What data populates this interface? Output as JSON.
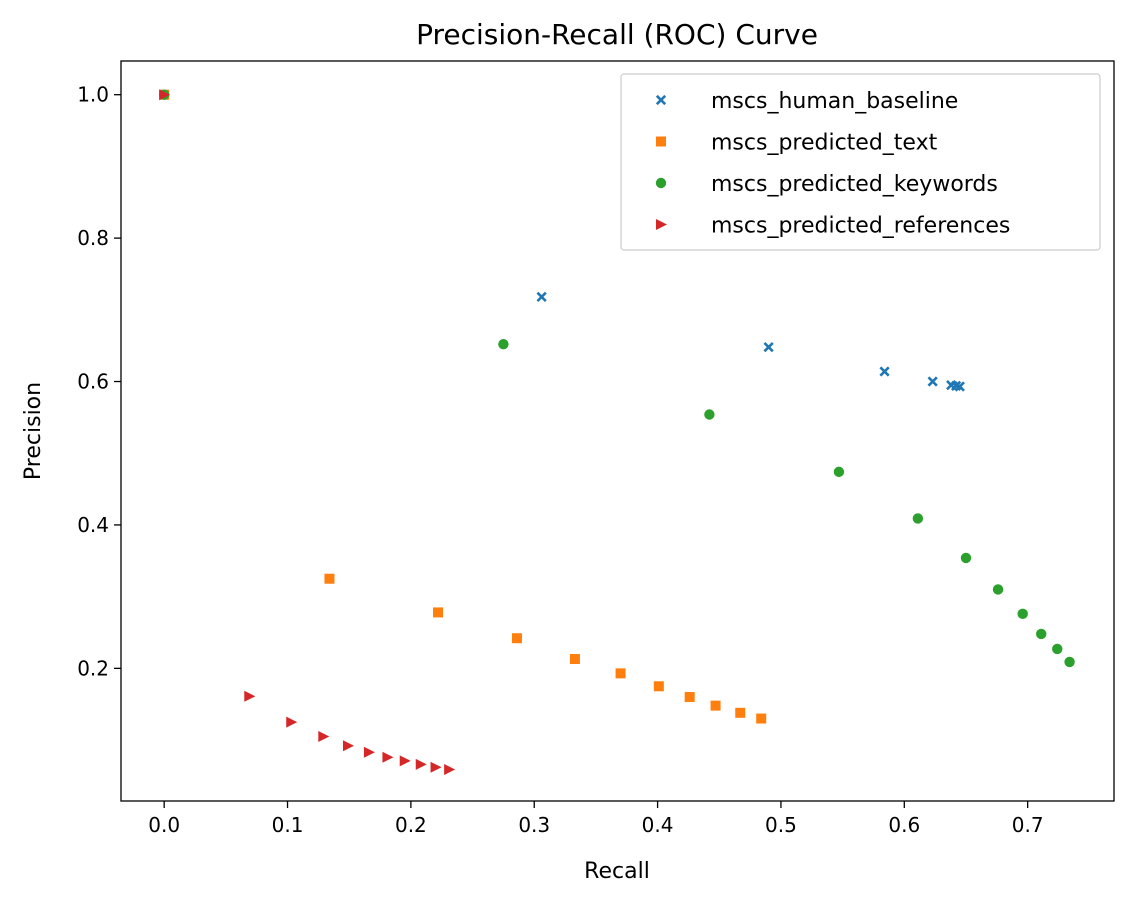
{
  "chart_data": {
    "type": "scatter",
    "title": "Precision-Recall (ROC) Curve",
    "xlabel": "Recall",
    "ylabel": "Precision",
    "xlim": [
      -0.035,
      0.77
    ],
    "ylim": [
      0.015,
      1.047
    ],
    "xticks": [
      "0.0",
      "0.1",
      "0.2",
      "0.3",
      "0.4",
      "0.5",
      "0.6",
      "0.7"
    ],
    "yticks": [
      "0.2",
      "0.4",
      "0.6",
      "0.8",
      "1.0"
    ],
    "grid": false,
    "legend_position": "top-right",
    "series": [
      {
        "name": "mscs_human_baseline",
        "marker": "x",
        "color": "#1f77b4",
        "points": [
          [
            0.0,
            1.0
          ],
          [
            0.306,
            0.718
          ],
          [
            0.49,
            0.648
          ],
          [
            0.584,
            0.614
          ],
          [
            0.623,
            0.6
          ],
          [
            0.638,
            0.595
          ],
          [
            0.642,
            0.594
          ],
          [
            0.645,
            0.593
          ]
        ]
      },
      {
        "name": "mscs_predicted_text",
        "marker": "square",
        "color": "#ff7f0e",
        "points": [
          [
            0.0,
            1.0
          ],
          [
            0.134,
            0.325
          ],
          [
            0.222,
            0.278
          ],
          [
            0.286,
            0.242
          ],
          [
            0.333,
            0.213
          ],
          [
            0.37,
            0.193
          ],
          [
            0.401,
            0.175
          ],
          [
            0.426,
            0.16
          ],
          [
            0.447,
            0.148
          ],
          [
            0.467,
            0.138
          ],
          [
            0.484,
            0.13
          ]
        ]
      },
      {
        "name": "mscs_predicted_keywords",
        "marker": "circle",
        "color": "#2ca02c",
        "points": [
          [
            0.0,
            1.0
          ],
          [
            0.275,
            0.652
          ],
          [
            0.442,
            0.554
          ],
          [
            0.547,
            0.474
          ],
          [
            0.611,
            0.409
          ],
          [
            0.65,
            0.354
          ],
          [
            0.676,
            0.31
          ],
          [
            0.696,
            0.276
          ],
          [
            0.711,
            0.248
          ],
          [
            0.724,
            0.227
          ],
          [
            0.734,
            0.209
          ]
        ]
      },
      {
        "name": "mscs_predicted_references",
        "marker": "triangle-right",
        "color": "#d62728",
        "points": [
          [
            0.0,
            1.0
          ],
          [
            0.069,
            0.161
          ],
          [
            0.103,
            0.125
          ],
          [
            0.129,
            0.105
          ],
          [
            0.149,
            0.092
          ],
          [
            0.166,
            0.083
          ],
          [
            0.181,
            0.076
          ],
          [
            0.195,
            0.071
          ],
          [
            0.208,
            0.066
          ],
          [
            0.22,
            0.062
          ],
          [
            0.231,
            0.059
          ]
        ]
      }
    ]
  }
}
